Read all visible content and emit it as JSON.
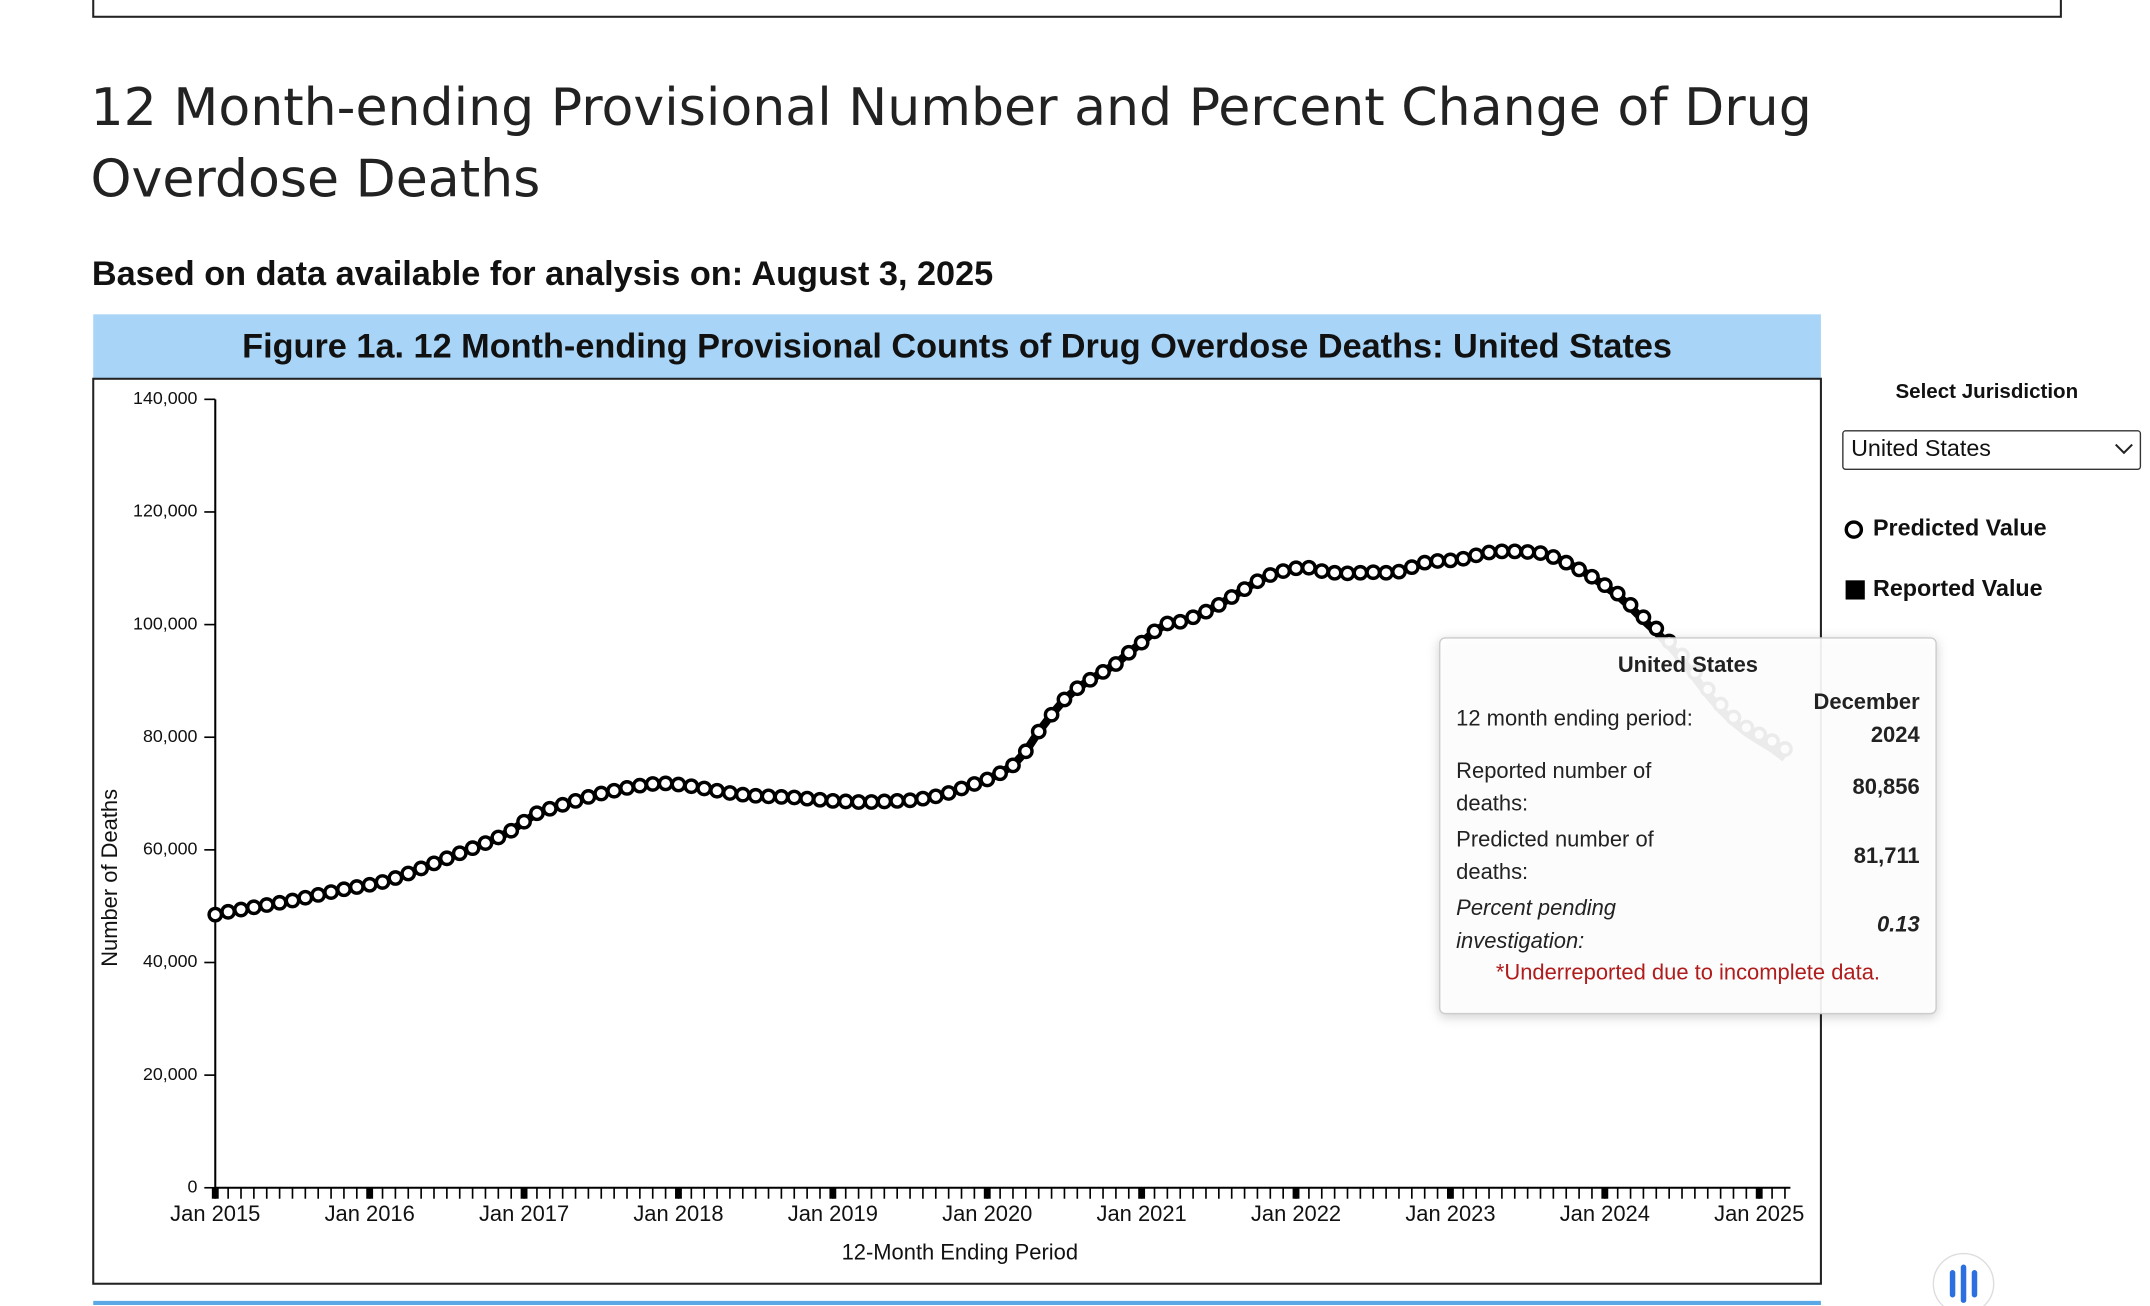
{
  "page": {
    "heading": "12 Month-ending Provisional Number and Percent Change of Drug Overdose Deaths",
    "subheading": "Based on data available for analysis on: August 3, 2025",
    "jurisdiction_label": "Select Jurisdiction",
    "jurisdiction": "United States"
  },
  "tooltip": {
    "title": "United States",
    "rows": [
      [
        "12 month ending period:",
        "December 2024"
      ],
      [
        "Reported number of deaths:",
        "80,856"
      ],
      [
        "Predicted number of deaths:",
        "81,711"
      ],
      [
        "Percent pending investigation:",
        "0.13"
      ]
    ],
    "note": "*Underreported due to incomplete data."
  },
  "chart_data": {
    "type": "line",
    "title": "Figure 1a. 12 Month-ending Provisional Counts of Drug Overdose Deaths: United States",
    "x_label": "12-Month Ending Period",
    "y_label": "Number of Deaths",
    "x": [
      "2015-01",
      "2015-02",
      "2015-03",
      "2015-04",
      "2015-05",
      "2015-06",
      "2015-07",
      "2015-08",
      "2015-09",
      "2015-10",
      "2015-11",
      "2015-12",
      "2016-01",
      "2016-02",
      "2016-03",
      "2016-04",
      "2016-05",
      "2016-06",
      "2016-07",
      "2016-08",
      "2016-09",
      "2016-10",
      "2016-11",
      "2016-12",
      "2017-01",
      "2017-02",
      "2017-03",
      "2017-04",
      "2017-05",
      "2017-06",
      "2017-07",
      "2017-08",
      "2017-09",
      "2017-10",
      "2017-11",
      "2017-12",
      "2018-01",
      "2018-02",
      "2018-03",
      "2018-04",
      "2018-05",
      "2018-06",
      "2018-07",
      "2018-08",
      "2018-09",
      "2018-10",
      "2018-11",
      "2018-12",
      "2019-01",
      "2019-02",
      "2019-03",
      "2019-04",
      "2019-05",
      "2019-06",
      "2019-07",
      "2019-08",
      "2019-09",
      "2019-10",
      "2019-11",
      "2019-12",
      "2020-01",
      "2020-02",
      "2020-03",
      "2020-04",
      "2020-05",
      "2020-06",
      "2020-07",
      "2020-08",
      "2020-09",
      "2020-10",
      "2020-11",
      "2020-12",
      "2021-01",
      "2021-02",
      "2021-03",
      "2021-04",
      "2021-05",
      "2021-06",
      "2021-07",
      "2021-08",
      "2021-09",
      "2021-10",
      "2021-11",
      "2021-12",
      "2022-01",
      "2022-02",
      "2022-03",
      "2022-04",
      "2022-05",
      "2022-06",
      "2022-07",
      "2022-08",
      "2022-09",
      "2022-10",
      "2022-11",
      "2022-12",
      "2023-01",
      "2023-02",
      "2023-03",
      "2023-04",
      "2023-05",
      "2023-06",
      "2023-07",
      "2023-08",
      "2023-09",
      "2023-10",
      "2023-11",
      "2023-12",
      "2024-01",
      "2024-02",
      "2024-03",
      "2024-04",
      "2024-05",
      "2024-06",
      "2024-07",
      "2024-08",
      "2024-09",
      "2024-10",
      "2024-11",
      "2024-12",
      "2025-01",
      "2025-02",
      "2025-03"
    ],
    "series": [
      {
        "name": "Reported Value",
        "color": "#000000",
        "marker": "square",
        "values": [
          48500,
          49000,
          49400,
          49800,
          50200,
          50600,
          51000,
          51500,
          52000,
          52500,
          53000,
          53400,
          53800,
          54300,
          55000,
          55800,
          56700,
          57600,
          58500,
          59400,
          60300,
          61200,
          62200,
          63400,
          65000,
          66500,
          67300,
          68000,
          68700,
          69400,
          70000,
          70500,
          71000,
          71400,
          71700,
          71800,
          71600,
          71300,
          70900,
          70500,
          70100,
          69800,
          69600,
          69500,
          69400,
          69300,
          69100,
          68900,
          68700,
          68600,
          68500,
          68500,
          68600,
          68700,
          68800,
          69100,
          69500,
          70100,
          70900,
          71700,
          72500,
          73600,
          75000,
          77500,
          81000,
          84000,
          86700,
          88700,
          90200,
          91600,
          93000,
          95000,
          96800,
          98800,
          100200,
          100500,
          101300,
          102300,
          103500,
          104900,
          106300,
          107700,
          108800,
          109500,
          110000,
          110100,
          109500,
          109200,
          109100,
          109200,
          109300,
          109200,
          109400,
          110200,
          111000,
          111300,
          111400,
          111700,
          112300,
          112800,
          113000,
          113000,
          112900,
          112700,
          112000,
          111000,
          109800,
          108500,
          106800,
          105200,
          103100,
          100800,
          98700,
          96300,
          93700,
          90600,
          87600,
          84900,
          82700,
          80856,
          79400,
          78000,
          76300
        ]
      },
      {
        "name": "Predicted Value",
        "color": "#000000",
        "marker": "circle",
        "values": [
          48500,
          49000,
          49400,
          49800,
          50200,
          50600,
          51000,
          51500,
          52000,
          52500,
          53000,
          53400,
          53800,
          54300,
          55000,
          55800,
          56700,
          57600,
          58500,
          59400,
          60300,
          61200,
          62200,
          63400,
          65000,
          66500,
          67300,
          68000,
          68700,
          69400,
          70000,
          70500,
          71000,
          71400,
          71700,
          71800,
          71600,
          71300,
          70900,
          70500,
          70100,
          69800,
          69600,
          69500,
          69400,
          69300,
          69100,
          68900,
          68700,
          68600,
          68500,
          68500,
          68600,
          68700,
          68800,
          69100,
          69500,
          70100,
          70900,
          71700,
          72500,
          73600,
          75000,
          77500,
          81000,
          84000,
          86700,
          88700,
          90200,
          91600,
          93000,
          95000,
          96800,
          98800,
          100200,
          100500,
          101300,
          102300,
          103500,
          104900,
          106300,
          107700,
          108800,
          109500,
          110000,
          110100,
          109500,
          109200,
          109100,
          109200,
          109300,
          109200,
          109400,
          110200,
          111000,
          111300,
          111400,
          111700,
          112300,
          112800,
          113000,
          113000,
          112900,
          112700,
          112000,
          111000,
          109800,
          108500,
          107000,
          105500,
          103500,
          101300,
          99300,
          97000,
          94500,
          91500,
          88500,
          85800,
          83500,
          81711,
          80500,
          79300,
          77900
        ]
      }
    ],
    "xticks": [
      {
        "value": "2015-01",
        "label": "Jan 2015"
      },
      {
        "value": "2016-01",
        "label": "Jan 2016"
      },
      {
        "value": "2017-01",
        "label": "Jan 2017"
      },
      {
        "value": "2018-01",
        "label": "Jan 2018"
      },
      {
        "value": "2019-01",
        "label": "Jan 2019"
      },
      {
        "value": "2020-01",
        "label": "Jan 2020"
      },
      {
        "value": "2021-01",
        "label": "Jan 2021"
      },
      {
        "value": "2022-01",
        "label": "Jan 2022"
      },
      {
        "value": "2023-01",
        "label": "Jan 2023"
      },
      {
        "value": "2024-01",
        "label": "Jan 2024"
      },
      {
        "value": "2025-01",
        "label": "Jan 2025"
      }
    ],
    "ylim": [
      0,
      140000
    ],
    "yticks": [
      0,
      {
        "value": 20000,
        "label": "20,000"
      },
      {
        "value": 40000,
        "label": "40,000"
      },
      {
        "value": 60000,
        "label": "60,000"
      },
      {
        "value": 80000,
        "label": "80,000"
      },
      {
        "value": 100000,
        "label": "100,000"
      },
      {
        "value": 120000,
        "label": "120,000"
      },
      {
        "value": 140000,
        "label": "140,000"
      }
    ]
  }
}
